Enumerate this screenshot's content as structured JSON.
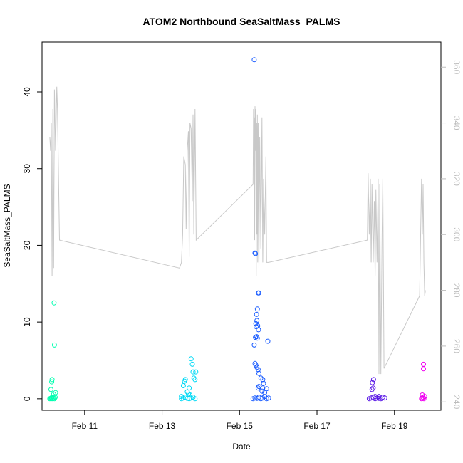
{
  "chart_data": {
    "type": "scatter",
    "title": "ATOM2 Northbound SeaSaltMass_PALMS",
    "xlabel": "Date",
    "ylabel": "SeaSaltMass_PALMS",
    "x_tick_labels": [
      "Feb 11",
      "Feb 13",
      "Feb 15",
      "Feb 17",
      "Feb 19"
    ],
    "x_tick_values": [
      11,
      13,
      15,
      17,
      19
    ],
    "xlim": [
      9.9,
      20.2
    ],
    "ylim": [
      -1.5,
      46.5
    ],
    "y_ticks": [
      0,
      10,
      20,
      30,
      40
    ],
    "y2lim": [
      237,
      369
    ],
    "y2_ticks": [
      240,
      260,
      280,
      300,
      320,
      340,
      360
    ],
    "y2_color": "#bdbdbd",
    "series": [
      {
        "color": "#00ffb0",
        "points": [
          [
            10.1,
            0
          ],
          [
            10.12,
            0.05
          ],
          [
            10.14,
            0.1
          ],
          [
            10.15,
            0.15
          ],
          [
            10.16,
            0
          ],
          [
            10.18,
            0.05
          ],
          [
            10.2,
            0.1
          ],
          [
            10.22,
            0
          ],
          [
            10.24,
            0.2
          ],
          [
            10.13,
            1.2
          ],
          [
            10.15,
            2.2
          ],
          [
            10.16,
            2.5
          ],
          [
            10.2,
            0.6
          ],
          [
            10.25,
            0.8
          ],
          [
            10.21,
            12.5
          ],
          [
            10.22,
            7.0
          ]
        ]
      },
      {
        "color": "#00d9f5",
        "points": [
          [
            13.5,
            0
          ],
          [
            13.55,
            0.1
          ],
          [
            13.6,
            0.2
          ],
          [
            13.65,
            0.05
          ],
          [
            13.7,
            0
          ],
          [
            13.75,
            0.1
          ],
          [
            13.8,
            0.2
          ],
          [
            13.85,
            0
          ],
          [
            13.5,
            0.3
          ],
          [
            13.55,
            1.7
          ],
          [
            13.58,
            2.3
          ],
          [
            13.6,
            2.5
          ],
          [
            13.65,
            0.9
          ],
          [
            13.7,
            1.4
          ],
          [
            13.75,
            5.2
          ],
          [
            13.78,
            4.5
          ],
          [
            13.8,
            3.5
          ],
          [
            13.82,
            2.7
          ],
          [
            13.85,
            2.5
          ],
          [
            13.87,
            3.5
          ],
          [
            13.72,
            0.5
          ],
          [
            13.68,
            0.6
          ]
        ]
      },
      {
        "color": "#1a5cff",
        "points": [
          [
            15.35,
            0
          ],
          [
            15.4,
            0.1
          ],
          [
            15.45,
            0.05
          ],
          [
            15.5,
            0.2
          ],
          [
            15.55,
            0
          ],
          [
            15.6,
            0.1
          ],
          [
            15.65,
            0.3
          ],
          [
            15.7,
            0
          ],
          [
            15.75,
            0.1
          ],
          [
            15.38,
            44.2
          ],
          [
            15.4,
            19.0
          ],
          [
            15.41,
            18.9
          ],
          [
            15.48,
            13.8
          ],
          [
            15.5,
            13.8
          ],
          [
            15.46,
            11.7
          ],
          [
            15.44,
            11.0
          ],
          [
            15.45,
            10.2
          ],
          [
            15.42,
            9.8
          ],
          [
            15.47,
            9.5
          ],
          [
            15.43,
            9.4
          ],
          [
            15.49,
            9.0
          ],
          [
            15.41,
            8.0
          ],
          [
            15.44,
            8.1
          ],
          [
            15.46,
            7.9
          ],
          [
            15.73,
            7.5
          ],
          [
            15.38,
            7.0
          ],
          [
            15.4,
            4.6
          ],
          [
            15.42,
            4.4
          ],
          [
            15.45,
            4.1
          ],
          [
            15.48,
            3.8
          ],
          [
            15.5,
            3.3
          ],
          [
            15.55,
            2.7
          ],
          [
            15.6,
            2.5
          ],
          [
            15.62,
            2.0
          ],
          [
            15.5,
            1.6
          ],
          [
            15.48,
            1.4
          ],
          [
            15.6,
            1.4
          ],
          [
            15.7,
            1.3
          ],
          [
            15.58,
            1.0
          ],
          [
            15.65,
            0.8
          ]
        ]
      },
      {
        "color": "#5a19e6",
        "points": [
          [
            18.35,
            0
          ],
          [
            18.4,
            0.1
          ],
          [
            18.45,
            0.2
          ],
          [
            18.5,
            0
          ],
          [
            18.55,
            0.1
          ],
          [
            18.6,
            0.05
          ],
          [
            18.65,
            0
          ],
          [
            18.7,
            0.2
          ],
          [
            18.75,
            0.1
          ],
          [
            18.42,
            1.2
          ],
          [
            18.45,
            1.4
          ],
          [
            18.43,
            2.1
          ],
          [
            18.46,
            2.5
          ],
          [
            18.5,
            0.3
          ],
          [
            18.6,
            0.3
          ]
        ]
      },
      {
        "color": "#f000f0",
        "points": [
          [
            19.7,
            0
          ],
          [
            19.72,
            0.1
          ],
          [
            19.74,
            0.2
          ],
          [
            19.76,
            0
          ],
          [
            19.72,
            0.5
          ],
          [
            19.75,
            3.9
          ],
          [
            19.75,
            4.5
          ],
          [
            19.78,
            0.3
          ]
        ]
      }
    ],
    "secondary_line": {
      "color": "#c8c8c8",
      "axis": "right",
      "x": [
        10.1,
        10.12,
        10.14,
        10.16,
        10.18,
        10.2,
        10.22,
        10.25,
        10.28,
        10.3,
        10.35,
        13.45,
        13.5,
        13.53,
        13.56,
        13.6,
        13.62,
        13.65,
        13.68,
        13.7,
        13.72,
        13.75,
        13.78,
        13.8,
        13.82,
        13.85,
        13.88,
        15.35,
        15.36,
        15.37,
        15.38,
        15.39,
        15.4,
        15.41,
        15.42,
        15.43,
        15.44,
        15.45,
        15.46,
        15.47,
        15.48,
        15.5,
        15.52,
        15.55,
        15.58,
        15.6,
        15.62,
        15.65,
        15.68,
        15.7,
        15.75,
        18.3,
        18.32,
        18.35,
        18.38,
        18.4,
        18.42,
        18.45,
        18.48,
        18.5,
        18.52,
        18.55,
        18.58,
        18.6,
        18.62,
        18.65,
        18.68,
        18.7,
        18.73,
        19.65,
        19.7,
        19.72,
        19.74,
        19.76,
        19.78,
        19.8
      ],
      "y": [
        335,
        330,
        340,
        285,
        345,
        288,
        352,
        330,
        353,
        345,
        298,
        288,
        290,
        300,
        328,
        325,
        302,
        330,
        337,
        292,
        340,
        338,
        312,
        343,
        300,
        345,
        298,
        318,
        345,
        325,
        342,
        298,
        346,
        330,
        345,
        285,
        340,
        300,
        343,
        290,
        340,
        288,
        335,
        295,
        342,
        290,
        320,
        300,
        328,
        290,
        290,
        298,
        322,
        300,
        320,
        290,
        318,
        290,
        312,
        285,
        316,
        290,
        320,
        250,
        318,
        250,
        300,
        320,
        252,
        278,
        320,
        300,
        318,
        290,
        278,
        280
      ]
    }
  }
}
